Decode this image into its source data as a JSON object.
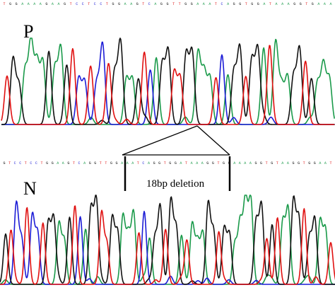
{
  "panels": [
    {
      "id": "patient",
      "label": "P",
      "sequence": "TGGAAAAGAAGTCCTCCTGGAAGTCAGGTTGGAAATCAGGTGGATAAAGGTGAAA"
    },
    {
      "id": "normal",
      "label": "N",
      "sequence": "GTCCTCCTGGAAGTCAGGTTGGAAATCAGGTGGATAAAGGTGGAAAAGGTGTAAGGTGGAAT"
    }
  ],
  "annotation": {
    "text": "18bp deletion"
  },
  "colors": {
    "A": "#1a9a4a",
    "C": "#1c1cd6",
    "G": "#111111",
    "T": "#e01010",
    "baseline": "#303030"
  }
}
